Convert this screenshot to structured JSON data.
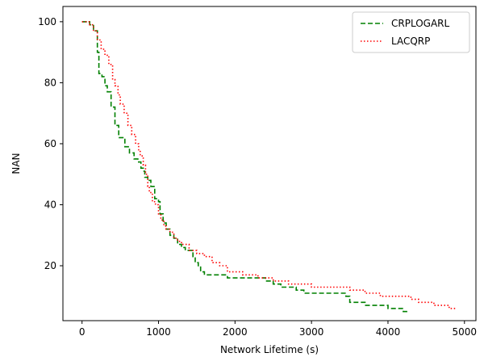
{
  "chart_data": {
    "type": "line",
    "title": "",
    "xlabel": "Network Lifetime (s)",
    "ylabel": "NAN",
    "xlim": [
      -250,
      5150
    ],
    "ylim": [
      2,
      105
    ],
    "xticks": [
      0,
      1000,
      2000,
      3000,
      4000,
      5000
    ],
    "yticks": [
      20,
      40,
      60,
      80,
      100
    ],
    "grid": false,
    "legend": "top-right",
    "series": [
      {
        "name": "CRPLOGARL",
        "color": "#008000",
        "dash": "dashed",
        "x": [
          0,
          100,
          150,
          200,
          220,
          260,
          300,
          330,
          380,
          430,
          480,
          560,
          620,
          680,
          730,
          770,
          800,
          820,
          860,
          900,
          950,
          1000,
          1020,
          1060,
          1100,
          1150,
          1200,
          1250,
          1300,
          1350,
          1400,
          1450,
          1480,
          1520,
          1550,
          1600,
          1700,
          1800,
          1900,
          2000,
          2100,
          2200,
          2300,
          2400,
          2500,
          2600,
          2700,
          2800,
          2900,
          3000,
          3100,
          3200,
          3300,
          3400,
          3450,
          3500,
          3600,
          3700,
          3800,
          3900,
          4000,
          4100,
          4200,
          4280
        ],
        "y": [
          100,
          99,
          97,
          90,
          83,
          82,
          79,
          77,
          72,
          66,
          62,
          59,
          57,
          55,
          54,
          52,
          51,
          49,
          48,
          46,
          42,
          41,
          37,
          34,
          32,
          30,
          29,
          27,
          26,
          25,
          25,
          23,
          21,
          20,
          18,
          17,
          17,
          17,
          16,
          16,
          16,
          16,
          16,
          15,
          14,
          13,
          13,
          12,
          11,
          11,
          11,
          11,
          11,
          11,
          10,
          8,
          8,
          7,
          7,
          7,
          6,
          6,
          5,
          5
        ]
      },
      {
        "name": "LACQRP",
        "color": "#ff0000",
        "dash": "dotted",
        "x": [
          0,
          100,
          150,
          200,
          250,
          300,
          350,
          400,
          430,
          470,
          500,
          550,
          600,
          650,
          700,
          740,
          760,
          800,
          830,
          860,
          880,
          920,
          960,
          1000,
          1030,
          1070,
          1100,
          1150,
          1200,
          1250,
          1300,
          1400,
          1500,
          1600,
          1700,
          1800,
          1900,
          2000,
          2100,
          2200,
          2300,
          2400,
          2500,
          2600,
          2700,
          2800,
          2900,
          3000,
          3200,
          3400,
          3500,
          3600,
          3700,
          3800,
          3900,
          4000,
          4100,
          4200,
          4300,
          4400,
          4500,
          4600,
          4700,
          4800,
          4900
        ],
        "y": [
          100,
          99,
          97,
          94,
          91,
          89,
          86,
          81,
          79,
          76,
          73,
          70,
          66,
          63,
          60,
          58,
          56,
          53,
          50,
          46,
          44,
          41,
          40,
          37,
          35,
          33,
          32,
          31,
          29,
          28,
          27,
          25,
          24,
          23,
          21,
          20,
          18,
          18,
          17,
          17,
          16,
          16,
          15,
          15,
          14,
          14,
          14,
          13,
          13,
          13,
          12,
          12,
          11,
          11,
          10,
          10,
          10,
          10,
          9,
          8,
          8,
          7,
          7,
          6,
          6
        ]
      }
    ]
  }
}
